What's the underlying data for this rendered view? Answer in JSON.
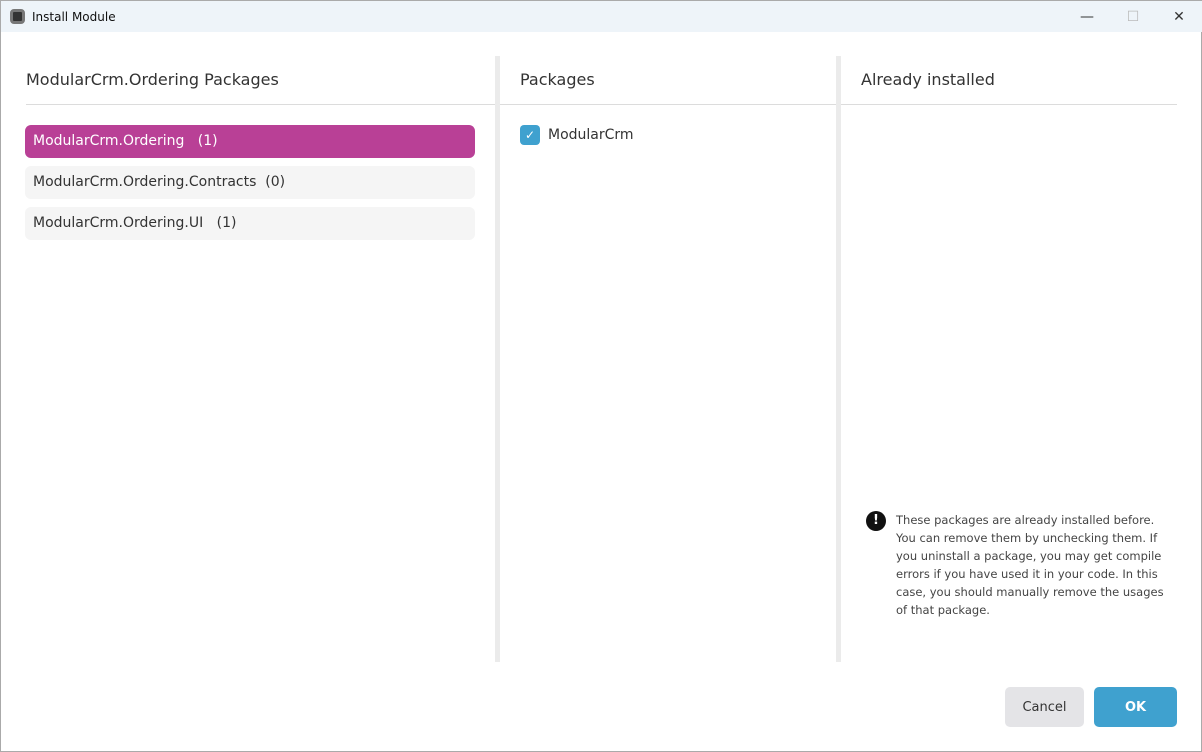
{
  "window": {
    "title": "Install Module",
    "minimize": "—",
    "maximize": "☐",
    "close": "✕"
  },
  "left": {
    "header": "ModularCrm.Ordering Packages",
    "items": [
      {
        "label": "ModularCrm.Ordering   (1)",
        "selected": true
      },
      {
        "label": "ModularCrm.Ordering.Contracts  (0)",
        "selected": false
      },
      {
        "label": "ModularCrm.Ordering.UI   (1)",
        "selected": false
      }
    ]
  },
  "middle": {
    "header": "Packages",
    "packages": [
      {
        "label": "ModularCrm",
        "checked": true
      }
    ]
  },
  "right": {
    "header": "Already installed",
    "note": "These packages are already installed before. You can remove them by unchecking them. If you uninstall a package, you may get compile errors if you have used it in your code. In this case, you should manually remove the usages of that package.",
    "warn_icon": "!"
  },
  "footer": {
    "cancel": "Cancel",
    "ok": "OK"
  },
  "colors": {
    "accent": "#b94096",
    "ok": "#3fa1cf"
  }
}
